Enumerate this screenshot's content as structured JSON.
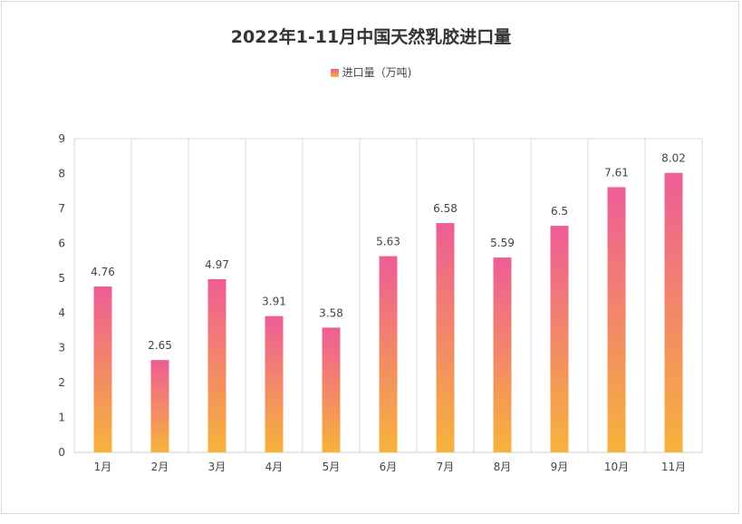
{
  "chart_data": {
    "type": "bar",
    "title": "2022年1-11月中国天然乳胶进口量",
    "categories": [
      "1月",
      "2月",
      "3月",
      "4月",
      "5月",
      "6月",
      "7月",
      "8月",
      "9月",
      "10月",
      "11月"
    ],
    "series": [
      {
        "name": "进口量（万吨)",
        "values": [
          4.76,
          2.65,
          4.97,
          3.91,
          3.58,
          5.63,
          6.58,
          5.59,
          6.5,
          7.61,
          8.02
        ]
      }
    ],
    "data_labels": [
      "4.76",
      "2.65",
      "4.97",
      "3.91",
      "3.58",
      "5.63",
      "6.58",
      "5.59",
      "6.5",
      "7.61",
      "8.02"
    ],
    "yticks": [
      "0",
      "1",
      "2",
      "3",
      "4",
      "5",
      "6",
      "7",
      "8",
      "9"
    ],
    "ylim": [
      0,
      9
    ],
    "grid": "vertical category dividers",
    "legend_position": "top-center",
    "colors": {
      "bar_top": "#ee5d96",
      "bar_bottom": "#f6b33a",
      "text": "#444444",
      "grid": "#d9d9d9"
    }
  }
}
